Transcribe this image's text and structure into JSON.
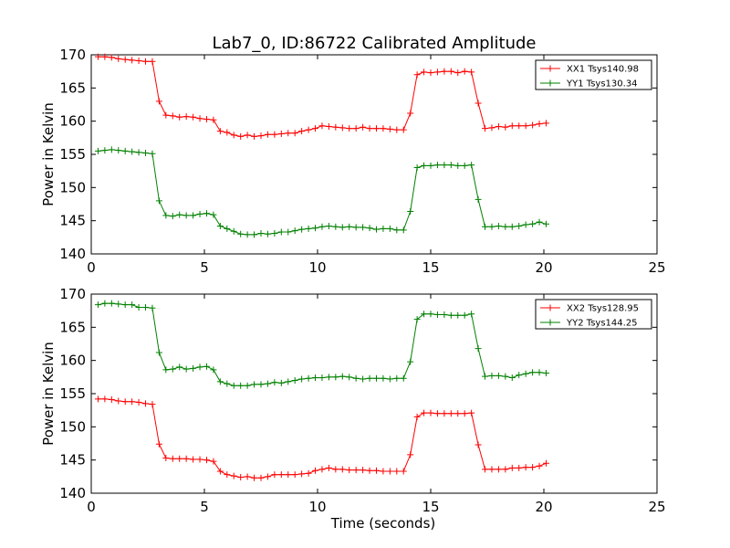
{
  "figure": {
    "title": "Lab7_0, ID:86722 Calibrated Amplitude"
  },
  "chart_data": [
    {
      "type": "line",
      "title": "Lab7_0, ID:86722 Calibrated Amplitude",
      "xlabel": "",
      "ylabel": "Power in Kelvin",
      "xlim": [
        0,
        25
      ],
      "ylim": [
        140,
        170
      ],
      "xticks": [
        0,
        5,
        10,
        15,
        20,
        25
      ],
      "yticks": [
        140,
        145,
        150,
        155,
        160,
        165,
        170
      ],
      "grid": false,
      "legend_position": "top-right",
      "marker": "+",
      "x": [
        0.3,
        0.6,
        0.9,
        1.2,
        1.5,
        1.8,
        2.1,
        2.4,
        2.7,
        3.0,
        3.3,
        3.6,
        3.9,
        4.2,
        4.5,
        4.8,
        5.1,
        5.4,
        5.7,
        6.0,
        6.3,
        6.6,
        6.9,
        7.2,
        7.5,
        7.8,
        8.1,
        8.4,
        8.7,
        9.0,
        9.3,
        9.6,
        9.9,
        10.2,
        10.5,
        10.8,
        11.1,
        11.4,
        11.7,
        12.0,
        12.3,
        12.6,
        12.9,
        13.2,
        13.5,
        13.8,
        14.1,
        14.4,
        14.7,
        15.0,
        15.3,
        15.6,
        15.9,
        16.2,
        16.5,
        16.8,
        17.1,
        17.4,
        17.7,
        18.0,
        18.3,
        18.6,
        18.9,
        19.2,
        19.5,
        19.8,
        20.1
      ],
      "series": [
        {
          "name": "XX1 Tsys140.98",
          "color": "#ff0000",
          "values": [
            169.7,
            169.7,
            169.6,
            169.4,
            169.3,
            169.2,
            169.1,
            169.0,
            169.0,
            163.0,
            160.9,
            160.8,
            160.6,
            160.7,
            160.6,
            160.4,
            160.3,
            160.2,
            158.5,
            158.3,
            157.9,
            157.7,
            157.9,
            157.7,
            157.8,
            158.0,
            158.0,
            158.1,
            158.2,
            158.2,
            158.5,
            158.7,
            158.9,
            159.3,
            159.2,
            159.1,
            159.0,
            158.9,
            158.9,
            159.1,
            158.9,
            158.9,
            158.9,
            158.8,
            158.7,
            158.7,
            161.2,
            167.0,
            167.4,
            167.3,
            167.4,
            167.5,
            167.5,
            167.3,
            167.5,
            167.4,
            162.7,
            158.9,
            159.0,
            159.2,
            159.1,
            159.3,
            159.3,
            159.3,
            159.4,
            159.6,
            159.7
          ]
        },
        {
          "name": "YY1 Tsys130.34",
          "color": "#008000",
          "values": [
            155.5,
            155.6,
            155.7,
            155.6,
            155.5,
            155.4,
            155.3,
            155.2,
            155.1,
            148.0,
            145.8,
            145.7,
            145.9,
            145.8,
            145.8,
            146.0,
            146.1,
            145.9,
            144.2,
            143.8,
            143.4,
            143.0,
            142.9,
            142.9,
            143.1,
            143.0,
            143.1,
            143.3,
            143.3,
            143.5,
            143.7,
            143.8,
            143.9,
            144.1,
            144.2,
            144.1,
            144.0,
            144.1,
            144.0,
            144.0,
            143.9,
            143.7,
            143.8,
            143.8,
            143.6,
            143.6,
            146.4,
            153.0,
            153.3,
            153.3,
            153.4,
            153.4,
            153.4,
            153.3,
            153.3,
            153.4,
            148.2,
            144.1,
            144.1,
            144.2,
            144.1,
            144.1,
            144.2,
            144.4,
            144.5,
            144.8,
            144.5
          ]
        }
      ]
    },
    {
      "type": "line",
      "title": "",
      "xlabel": "Time (seconds)",
      "ylabel": "Power in Kelvin",
      "xlim": [
        0,
        25
      ],
      "ylim": [
        140,
        170
      ],
      "xticks": [
        0,
        5,
        10,
        15,
        20,
        25
      ],
      "yticks": [
        140,
        145,
        150,
        155,
        160,
        165,
        170
      ],
      "grid": false,
      "legend_position": "top-right",
      "marker": "+",
      "x": [
        0.3,
        0.6,
        0.9,
        1.2,
        1.5,
        1.8,
        2.1,
        2.4,
        2.7,
        3.0,
        3.3,
        3.6,
        3.9,
        4.2,
        4.5,
        4.8,
        5.1,
        5.4,
        5.7,
        6.0,
        6.3,
        6.6,
        6.9,
        7.2,
        7.5,
        7.8,
        8.1,
        8.4,
        8.7,
        9.0,
        9.3,
        9.6,
        9.9,
        10.2,
        10.5,
        10.8,
        11.1,
        11.4,
        11.7,
        12.0,
        12.3,
        12.6,
        12.9,
        13.2,
        13.5,
        13.8,
        14.1,
        14.4,
        14.7,
        15.0,
        15.3,
        15.6,
        15.9,
        16.2,
        16.5,
        16.8,
        17.1,
        17.4,
        17.7,
        18.0,
        18.3,
        18.6,
        18.9,
        19.2,
        19.5,
        19.8,
        20.1
      ],
      "series": [
        {
          "name": "XX2 Tsys128.95",
          "color": "#ff0000",
          "values": [
            154.2,
            154.2,
            154.1,
            153.9,
            153.8,
            153.8,
            153.7,
            153.5,
            153.4,
            147.4,
            145.3,
            145.2,
            145.2,
            145.2,
            145.1,
            145.1,
            145.0,
            144.8,
            143.3,
            142.8,
            142.6,
            142.4,
            142.5,
            142.3,
            142.3,
            142.5,
            142.8,
            142.8,
            142.8,
            142.8,
            142.9,
            143.0,
            143.4,
            143.6,
            143.8,
            143.6,
            143.6,
            143.5,
            143.5,
            143.5,
            143.4,
            143.4,
            143.3,
            143.3,
            143.3,
            143.3,
            145.8,
            151.5,
            152.1,
            152.1,
            152.0,
            152.0,
            152.0,
            152.0,
            152.0,
            152.1,
            147.3,
            143.6,
            143.6,
            143.6,
            143.6,
            143.8,
            143.8,
            143.9,
            143.9,
            144.1,
            144.5
          ]
        },
        {
          "name": "YY2 Tsys144.25",
          "color": "#008000",
          "values": [
            168.4,
            168.6,
            168.6,
            168.5,
            168.4,
            168.4,
            168.0,
            168.0,
            167.9,
            161.2,
            158.6,
            158.7,
            159.0,
            158.7,
            158.8,
            159.0,
            159.1,
            158.6,
            156.8,
            156.5,
            156.2,
            156.2,
            156.2,
            156.4,
            156.4,
            156.5,
            156.7,
            156.6,
            156.8,
            157.0,
            157.2,
            157.3,
            157.4,
            157.4,
            157.5,
            157.5,
            157.6,
            157.5,
            157.3,
            157.2,
            157.3,
            157.3,
            157.3,
            157.2,
            157.3,
            157.3,
            159.8,
            166.2,
            167.0,
            167.0,
            166.9,
            166.9,
            166.8,
            166.8,
            166.8,
            167.0,
            161.8,
            157.6,
            157.7,
            157.7,
            157.6,
            157.4,
            157.8,
            158.0,
            158.2,
            158.2,
            158.1
          ]
        }
      ]
    }
  ]
}
